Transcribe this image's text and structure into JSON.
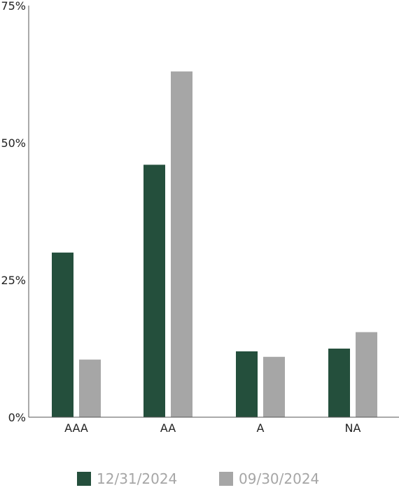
{
  "chart_data": {
    "type": "bar",
    "categories": [
      "AAA",
      "AA",
      "A",
      "NA"
    ],
    "series": [
      {
        "name": "12/31/2024",
        "values": [
          30,
          46,
          12,
          12.5
        ],
        "color": "#244f3c"
      },
      {
        "name": "09/30/2024",
        "values": [
          10.5,
          63,
          11,
          15.5
        ],
        "color": "#a6a6a6"
      }
    ],
    "yticks": [
      "0%",
      "25%",
      "50%",
      "75%"
    ],
    "ytick_values": [
      0,
      25,
      50,
      75
    ],
    "ylim": [
      0,
      75
    ],
    "title": "",
    "xlabel": "",
    "ylabel": "",
    "grid": false,
    "legend_position": "bottom"
  }
}
